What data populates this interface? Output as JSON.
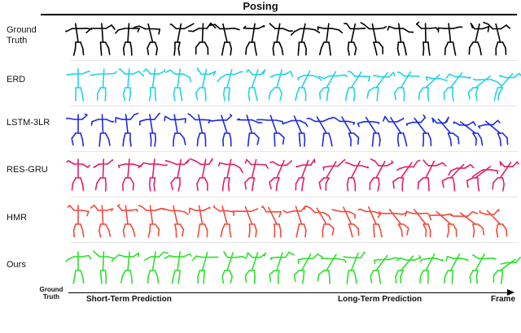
{
  "title": "Posing",
  "rows": [
    {
      "label": "Ground Truth",
      "color": "#000000"
    },
    {
      "label": "ERD",
      "color": "#22d3e6"
    },
    {
      "label": "LSTM-3LR",
      "color": "#1f2be0"
    },
    {
      "label": "RES-GRU",
      "color": "#e0206a"
    },
    {
      "label": "HMR",
      "color": "#f24a3c"
    },
    {
      "label": "Ours",
      "color": "#2ee02e"
    }
  ],
  "axis": {
    "ground_truth_label": "Ground Truth",
    "short_term": "Short-Term Prediction",
    "long_term": "Long-Term Prediction",
    "frame": "Frame"
  }
}
